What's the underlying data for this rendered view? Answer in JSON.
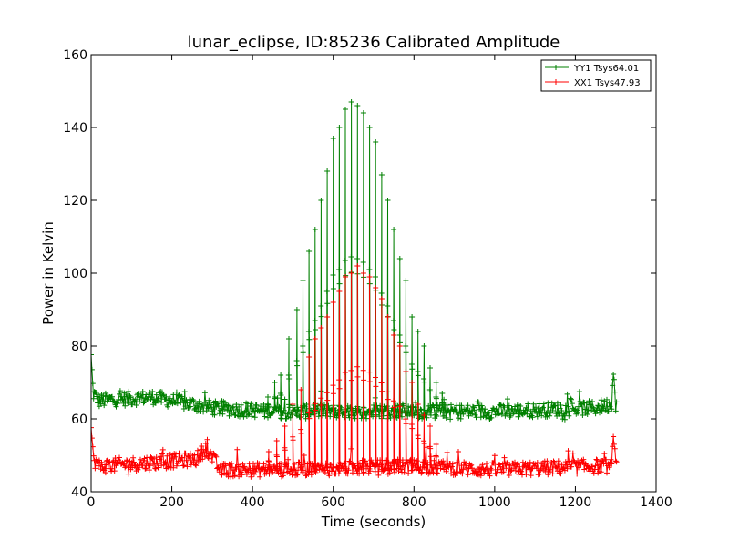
{
  "chart_data": {
    "type": "line",
    "title": "lunar_eclipse, ID:85236 Calibrated Amplitude",
    "xlabel": "Time (seconds)",
    "ylabel": "Power in Kelvin",
    "xlim": [
      0,
      1400
    ],
    "ylim": [
      40,
      160
    ],
    "xticks": [
      0,
      200,
      400,
      600,
      800,
      1000,
      1200,
      1400
    ],
    "yticks": [
      40,
      60,
      80,
      100,
      120,
      140,
      160
    ],
    "grid": false,
    "legend_position": "top-right",
    "marker": "+",
    "series": [
      {
        "name": "YY1 Tsys64.01",
        "color": "#008000",
        "baseline": [
          [
            0,
            77
          ],
          [
            5,
            67
          ],
          [
            20,
            65
          ],
          [
            150,
            66
          ],
          [
            300,
            63
          ],
          [
            450,
            62
          ],
          [
            800,
            62
          ],
          [
            1000,
            62
          ],
          [
            1250,
            63
          ],
          [
            1290,
            64
          ],
          [
            1295,
            75
          ],
          [
            1300,
            64
          ]
        ],
        "peaks": [
          [
            438,
            66
          ],
          [
            455,
            70
          ],
          [
            470,
            72
          ],
          [
            490,
            82
          ],
          [
            510,
            90
          ],
          [
            525,
            98
          ],
          [
            540,
            106
          ],
          [
            555,
            112
          ],
          [
            570,
            120
          ],
          [
            585,
            128
          ],
          [
            600,
            137
          ],
          [
            615,
            140
          ],
          [
            630,
            145
          ],
          [
            645,
            147
          ],
          [
            660,
            146
          ],
          [
            675,
            144
          ],
          [
            690,
            140
          ],
          [
            705,
            136
          ],
          [
            720,
            127
          ],
          [
            735,
            120
          ],
          [
            750,
            112
          ],
          [
            765,
            104
          ],
          [
            780,
            98
          ],
          [
            795,
            88
          ],
          [
            810,
            84
          ],
          [
            825,
            80
          ],
          [
            840,
            74
          ],
          [
            855,
            70
          ],
          [
            870,
            67
          ]
        ]
      },
      {
        "name": "XX1 Tsys47.93",
        "color": "#ff0000",
        "baseline": [
          [
            0,
            58
          ],
          [
            5,
            49
          ],
          [
            20,
            47
          ],
          [
            150,
            48
          ],
          [
            260,
            49
          ],
          [
            285,
            52
          ],
          [
            320,
            46
          ],
          [
            450,
            46
          ],
          [
            800,
            47
          ],
          [
            1000,
            46
          ],
          [
            1250,
            47
          ],
          [
            1290,
            47
          ],
          [
            1295,
            57
          ],
          [
            1300,
            47
          ]
        ],
        "peaks": [
          [
            440,
            51
          ],
          [
            460,
            54
          ],
          [
            480,
            58
          ],
          [
            500,
            64
          ],
          [
            520,
            68
          ],
          [
            540,
            77
          ],
          [
            555,
            82
          ],
          [
            570,
            85
          ],
          [
            585,
            88
          ],
          [
            600,
            92
          ],
          [
            615,
            95
          ],
          [
            630,
            99
          ],
          [
            645,
            100
          ],
          [
            660,
            102
          ],
          [
            675,
            100
          ],
          [
            690,
            99
          ],
          [
            705,
            96
          ],
          [
            720,
            93
          ],
          [
            735,
            88
          ],
          [
            750,
            83
          ],
          [
            765,
            80
          ],
          [
            780,
            73
          ],
          [
            795,
            70
          ],
          [
            810,
            64
          ],
          [
            825,
            61
          ],
          [
            840,
            58
          ],
          [
            855,
            53
          ]
        ]
      }
    ]
  }
}
